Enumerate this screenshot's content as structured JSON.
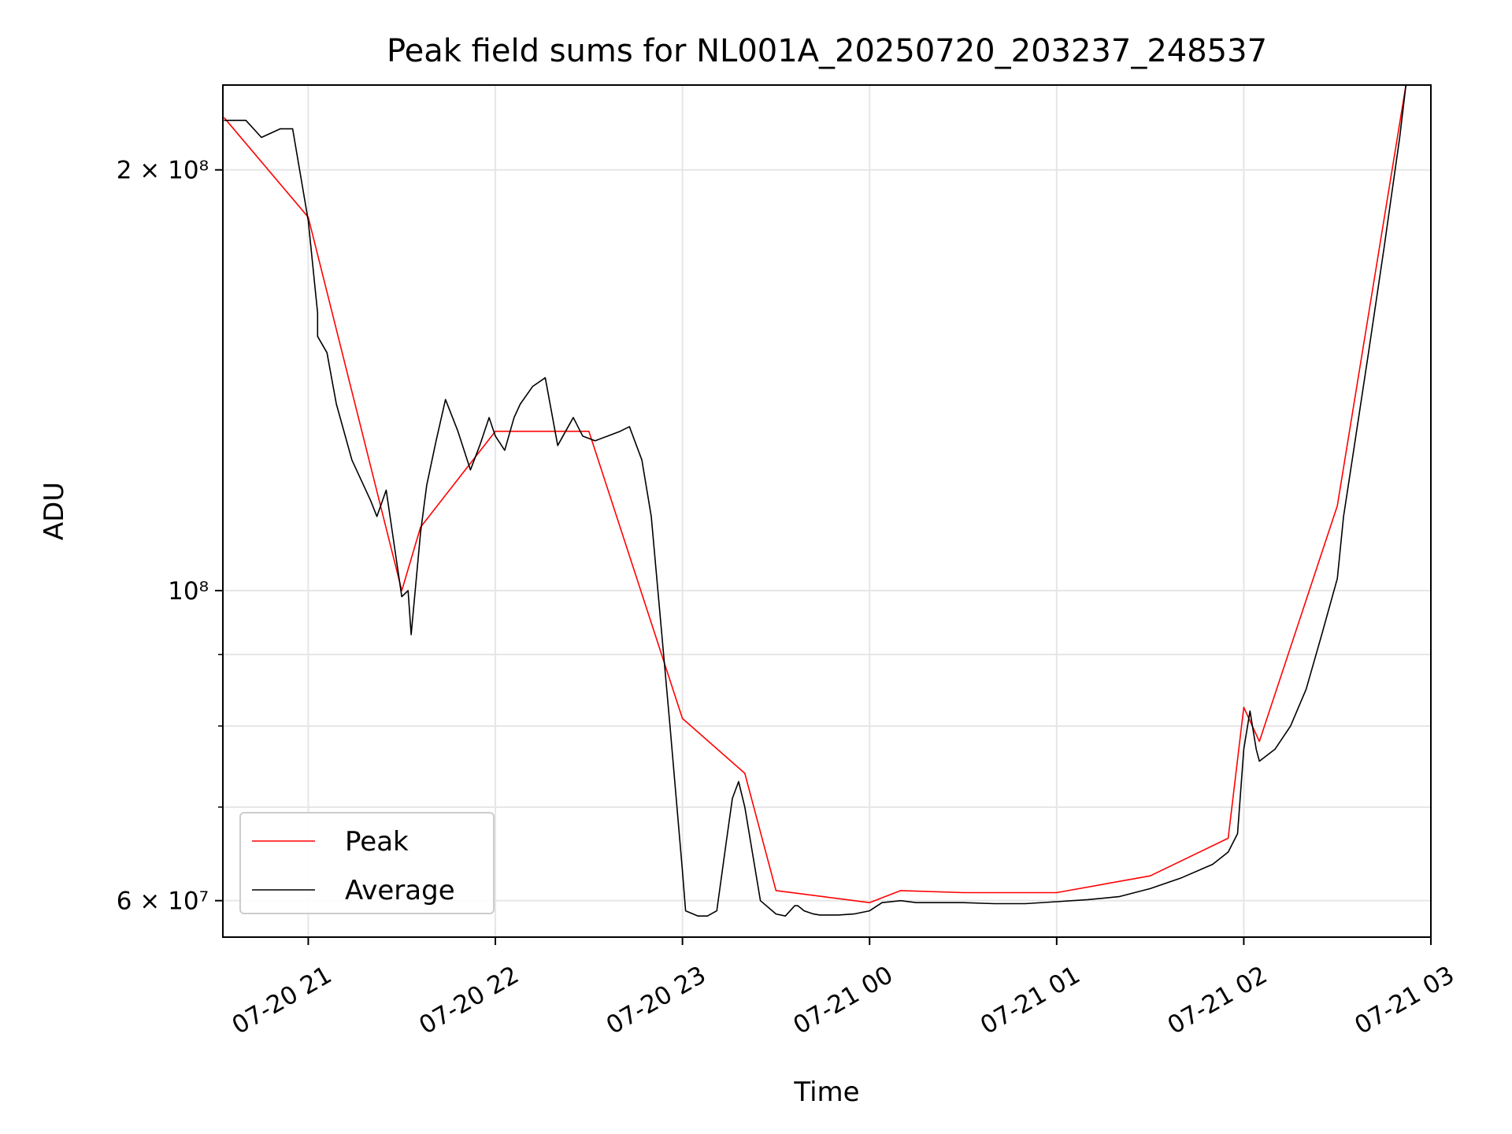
{
  "chart_data": {
    "type": "line",
    "title": "Peak field sums for NL001A_20250720_203237_248537",
    "xlabel": "Time",
    "ylabel": "ADU",
    "y_scale": "log",
    "ylim": [
      56500000,
      230000000
    ],
    "xlim": [
      "2025-07-20 20:32:37",
      "2025-07-21 03:00:00"
    ],
    "x_ticks": [
      "07-20 21",
      "07-20 22",
      "07-20 23",
      "07-21 00",
      "07-21 01",
      "07-21 02",
      "07-21 03"
    ],
    "y_ticks_major": [
      {
        "value": 60000000,
        "label": "6 × 10⁷"
      },
      {
        "value": 100000000,
        "label": "10⁸"
      },
      {
        "value": 200000000,
        "label": "2 × 10⁸"
      }
    ],
    "y_ticks_minor": [
      70000000,
      80000000,
      90000000
    ],
    "grid": true,
    "legend_position": "lower-left",
    "colors": {
      "peak": "#ff0000",
      "average": "#000000",
      "grid": "#e6e6e6"
    },
    "series": [
      {
        "name": "Average",
        "x": [
          "2025-07-20 20:33",
          "2025-07-20 20:40",
          "2025-07-20 20:45",
          "2025-07-20 20:51",
          "2025-07-20 20:55",
          "2025-07-20 21:00",
          "2025-07-20 21:03",
          "2025-07-20 21:03",
          "2025-07-20 21:06",
          "2025-07-20 21:09",
          "2025-07-20 21:14",
          "2025-07-20 21:20",
          "2025-07-20 21:22",
          "2025-07-20 21:25",
          "2025-07-20 21:30",
          "2025-07-20 21:32",
          "2025-07-20 21:33",
          "2025-07-20 21:36",
          "2025-07-20 21:38",
          "2025-07-20 21:41",
          "2025-07-20 21:44",
          "2025-07-20 21:48",
          "2025-07-20 21:52",
          "2025-07-20 21:55",
          "2025-07-20 21:58",
          "2025-07-20 22:00",
          "2025-07-20 22:03",
          "2025-07-20 22:06",
          "2025-07-20 22:08",
          "2025-07-20 22:12",
          "2025-07-20 22:16",
          "2025-07-20 22:20",
          "2025-07-20 22:25",
          "2025-07-20 22:28",
          "2025-07-20 22:32",
          "2025-07-20 22:36",
          "2025-07-20 22:40",
          "2025-07-20 22:43",
          "2025-07-20 22:47",
          "2025-07-20 22:50",
          "2025-07-20 22:56",
          "2025-07-20 23:00",
          "2025-07-20 23:01",
          "2025-07-20 23:05",
          "2025-07-20 23:08",
          "2025-07-20 23:11",
          "2025-07-20 23:14",
          "2025-07-20 23:16",
          "2025-07-20 23:18",
          "2025-07-20 23:20",
          "2025-07-20 23:25",
          "2025-07-20 23:30",
          "2025-07-20 23:33",
          "2025-07-20 23:36",
          "2025-07-20 23:37",
          "2025-07-20 23:39",
          "2025-07-20 23:42",
          "2025-07-20 23:44",
          "2025-07-20 23:46",
          "2025-07-20 23:50",
          "2025-07-20 23:55",
          "2025-07-21 00:00",
          "2025-07-21 00:04",
          "2025-07-21 00:10",
          "2025-07-21 00:15",
          "2025-07-21 00:20",
          "2025-07-21 00:30",
          "2025-07-21 00:40",
          "2025-07-21 00:50",
          "2025-07-21 01:00",
          "2025-07-21 01:10",
          "2025-07-21 01:20",
          "2025-07-21 01:30",
          "2025-07-21 01:40",
          "2025-07-21 01:50",
          "2025-07-21 01:55",
          "2025-07-21 01:58",
          "2025-07-21 02:00",
          "2025-07-21 02:02",
          "2025-07-21 02:04",
          "2025-07-21 02:05",
          "2025-07-21 02:10",
          "2025-07-21 02:15",
          "2025-07-21 02:20",
          "2025-07-21 02:25",
          "2025-07-21 02:30",
          "2025-07-21 02:32",
          "2025-07-21 02:35",
          "2025-07-21 02:40",
          "2025-07-21 02:45",
          "2025-07-21 02:50",
          "2025-07-21 02:52"
        ],
        "y": [
          217000000,
          217000000,
          211000000,
          214000000,
          214000000,
          184000000,
          158000000,
          152000000,
          148000000,
          136000000,
          124000000,
          116000000,
          113000000,
          118000000,
          99000000,
          100000000,
          93000000,
          110000000,
          119000000,
          128000000,
          137000000,
          130000000,
          122000000,
          127000000,
          133000000,
          129000000,
          126000000,
          133000000,
          136000000,
          140000000,
          142000000,
          127000000,
          133000000,
          129000000,
          128000000,
          129000000,
          130000000,
          131000000,
          124000000,
          113000000,
          80000000,
          63000000,
          59000000,
          58500000,
          58500000,
          59000000,
          66000000,
          71000000,
          73000000,
          70000000,
          60000000,
          58700000,
          58500000,
          59500000,
          59500000,
          59000000,
          58700000,
          58600000,
          58600000,
          58600000,
          58700000,
          59000000,
          59800000,
          60000000,
          59800000,
          59800000,
          59800000,
          59700000,
          59700000,
          59900000,
          60100000,
          60400000,
          61200000,
          62300000,
          63700000,
          65000000,
          67000000,
          77000000,
          82000000,
          77000000,
          75500000,
          77000000,
          80000000,
          85000000,
          93000000,
          102000000,
          113000000,
          125000000,
          148000000,
          176000000,
          211000000,
          230000000
        ]
      },
      {
        "name": "Peak",
        "x": [
          "2025-07-20 20:33",
          "2025-07-20 21:00",
          "2025-07-20 21:30",
          "2025-07-20 21:36",
          "2025-07-20 22:00",
          "2025-07-20 22:30",
          "2025-07-20 23:00",
          "2025-07-20 23:20",
          "2025-07-20 23:30",
          "2025-07-21 00:00",
          "2025-07-21 00:10",
          "2025-07-21 00:30",
          "2025-07-21 01:00",
          "2025-07-21 01:30",
          "2025-07-21 01:55",
          "2025-07-21 02:00",
          "2025-07-21 02:05",
          "2025-07-21 02:30",
          "2025-07-21 02:52"
        ],
        "y": [
          218000000,
          185000000,
          100000000,
          111000000,
          130000000,
          130000000,
          81000000,
          74000000,
          61000000,
          59800000,
          61000000,
          60800000,
          60800000,
          62500000,
          66500000,
          82500000,
          78000000,
          115000000,
          230000000
        ]
      }
    ]
  }
}
